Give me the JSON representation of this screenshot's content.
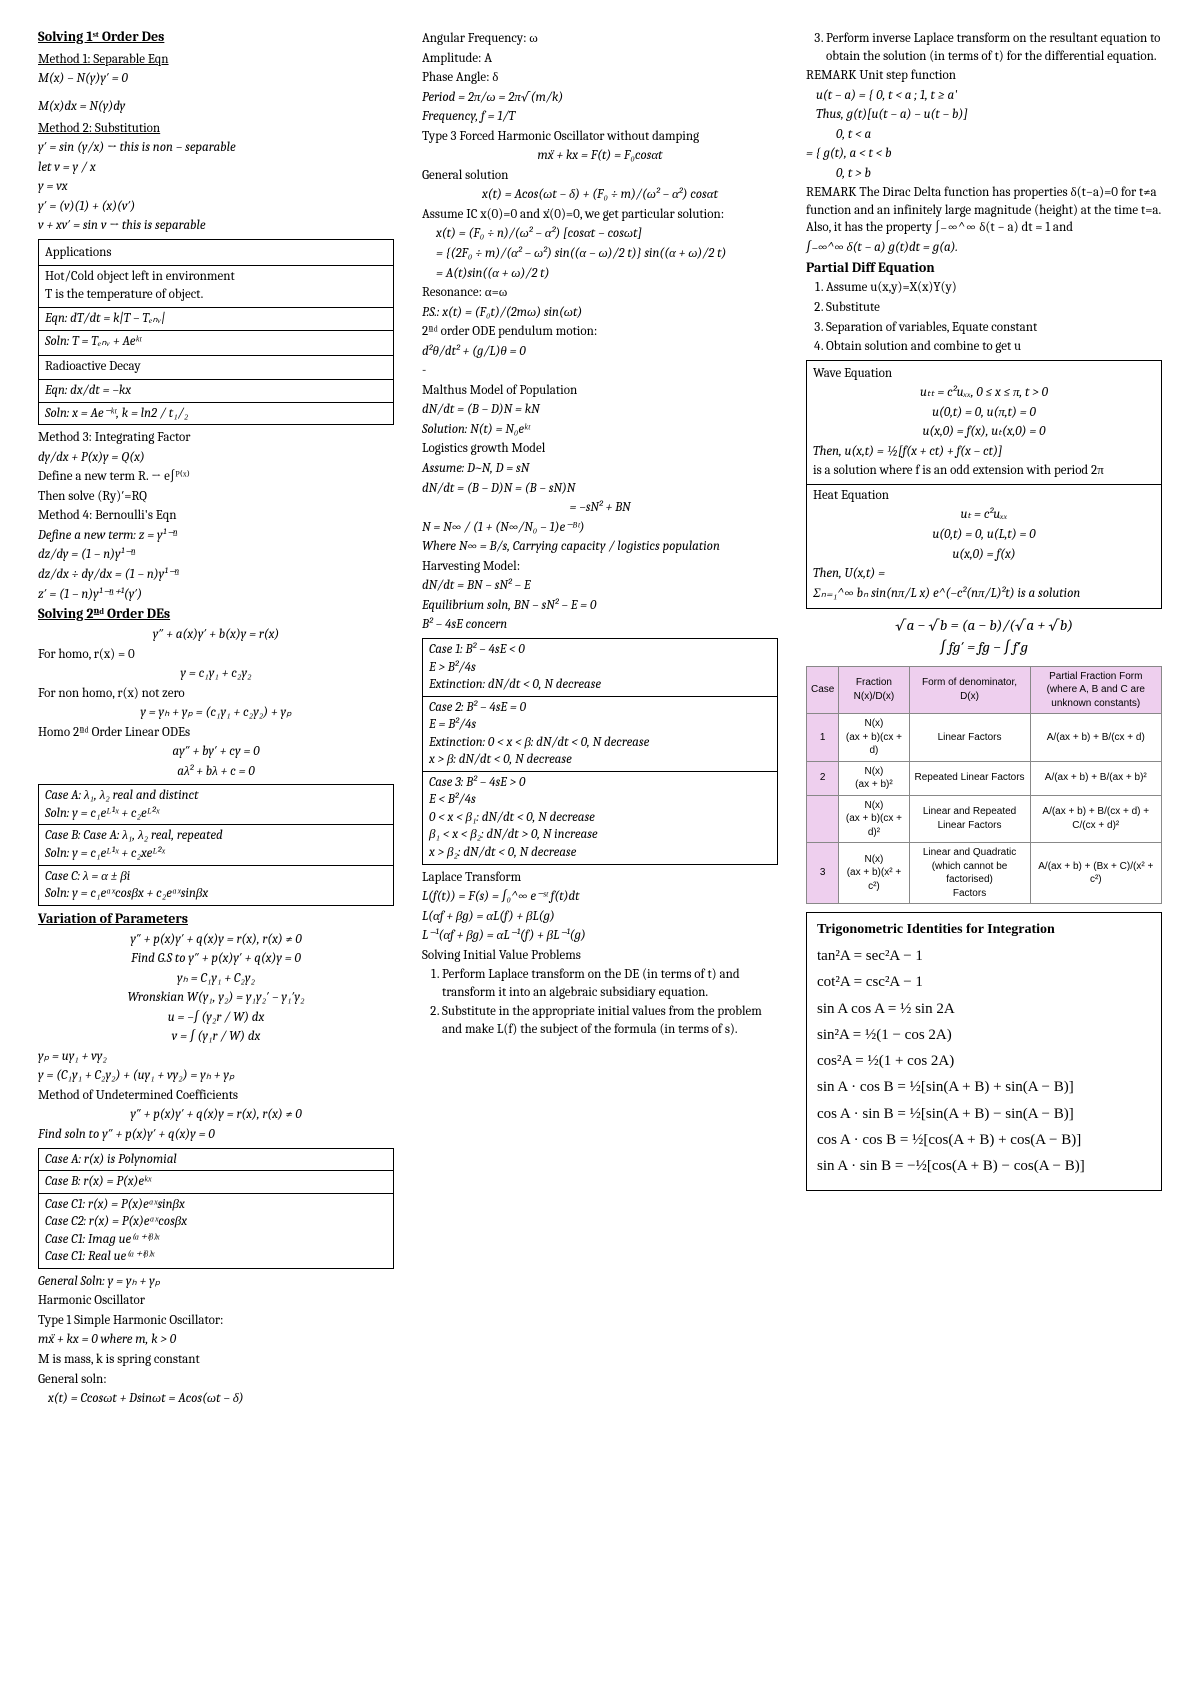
{
  "c1": {
    "title": "Solving 1ˢᵗ Order Des",
    "m1_h": "Method 1: Separable Eqn",
    "m1_1": "M(x) − N(y)y′ = 0",
    "m1_2": "M(x)dx = N(y)dy",
    "m2_h": "Method 2: Substitution",
    "m2_1": "y′ = sin (y/x) → this is non − separable",
    "m2_2": "let v = y / x",
    "m2_3": "y = vx",
    "m2_4": "y′ = (v)(1) + (x)(v′)",
    "m2_5": "v + xv′ = sin v → this is separable",
    "app_h": "Applications",
    "app_1": "Hot/Cold object left in environment",
    "app_2": "T is the temperature of object.",
    "app_3": "Eqn: dT/dt = k|T − Tₑₙᵥ|",
    "app_4": "Soln: T = Tₑₙᵥ + Aeᵏᵗ",
    "app_5": "Radioactive Decay",
    "app_6": "Eqn: dx/dt = −kx",
    "app_7": "Soln: x = Ae⁻ᵏᵗ, k = ln2 / t₁/₂",
    "m3_h": "Method 3: Integrating Factor",
    "m3_1": "dy/dx + P(x)y = Q(x)",
    "m3_2": "Define a new term R. → e∫ᴾ⁽ˣ⁾",
    "m3_3": "Then solve (Ry)′=RQ",
    "m4_h": "Method 4: Bernoulli's Eqn",
    "m4_1": "Define a new term: z = y¹⁻ⁿ",
    "m4_2": "dz/dy = (1 − n)y¹⁻ⁿ",
    "m4_3": "dz/dx ÷ dy/dx = (1 − n)y¹⁻ⁿ",
    "m4_4": "z′ = (1 − n)y¹⁻ⁿ⁺¹(y′)",
    "sec2_h": "Solving 2ⁿᵈ Order DEs",
    "s2_1": "y″ + a(x)y′ + b(x)y = r(x)",
    "s2_2": "For homo, r(x) = 0",
    "s2_3": "y = c₁y₁ + c₂y₂",
    "s2_4": "For non homo, r(x) not zero",
    "s2_5": "y = yₕ + yₚ = (c₁y₁ + c₂y₂) + yₚ",
    "s2_6": "Homo 2ⁿᵈ Order Linear ODEs",
    "s2_7": "ay″ + by′ + cy = 0",
    "s2_8": "aλ² + bλ + c = 0",
    "caseA1": "Case A: λ₁, λ₂ real and distinct",
    "caseA2": "Soln: y = c₁eᴸ¹ˣ + c₂eᴸ²ˣ",
    "caseB1": "Case B: Case A: λ₁, λ₂ real, repeated",
    "caseB2": "Soln: y = c₁eᴸ¹ˣ + c₂xeᴸ²ˣ",
    "caseC1": "Case C: λ = α ± βi",
    "caseC2": "Soln: y = c₁eᵅˣcosβx + c₂eᵅˣsinβx",
    "vop_h": "Variation of Parameters",
    "vop_1": "y″ + p(x)y′ + q(x)y = r(x), r(x) ≠ 0",
    "vop_2": "Find G.S to y″ + p(x)y′ + q(x)y = 0",
    "vop_3": "yₕ = C₁y₁ + C₂y₂",
    "vop_4": "Wronskian W(y₁, y₂) = y₁y₂′ − y₁′y₂",
    "vop_5": "u = −∫ (y₂r / W) dx",
    "vop_6": "v = ∫ (y₁r / W) dx",
    "vop_7": "yₚ = uy₁ + vy₂",
    "vop_8": "y = (C₁y₁ + C₂y₂) + (uy₁ + vy₂) = yₕ + yₚ",
    "muc_h": "Method of Undetermined Coefficients",
    "muc_1": "y″ + p(x)y′ + q(x)y = r(x), r(x) ≠ 0",
    "muc_2": "Find soln to y″ + p(x)y′ + q(x)y = 0",
    "uc_a": "Case A: r(x) is Polynomial",
    "uc_b": "Case B: r(x) = P(x)eᵏˣ",
    "uc_c1": "Case C1: r(x) = P(x)eᵅˣsinβx",
    "uc_c2": "Case C2: r(x) = P(x)eᵅˣcosβx",
    "uc_c3": "Case C1: Imag ue⁽ᵅ⁺ⁱᵝ⁾ˣ",
    "uc_c4": "Case C1: Real ue⁽ᵅ⁺ⁱᵝ⁾ˣ",
    "gs": "General Soln: y = yₕ + yₚ",
    "ho_h": "Harmonic Oscillator",
    "ho_1": "Type 1 Simple Harmonic Oscillator:",
    "ho_2": "mẍ + kx = 0 where m, k > 0",
    "ho_3": "M is mass, k is spring constant",
    "ho_4": "General soln:",
    "ho_5": "x(t) = Ccosωt + Dsinωt = Acos(ωt − δ)"
  },
  "c2": {
    "l1": "Angular Frequency: ω",
    "l2": "Amplitude: A",
    "l3": "Phase Angle: δ",
    "l4": "Period = 2π/ω = 2π√(m/k)",
    "l5": "Frequency, f = 1/T",
    "l6": "Type 3 Forced Harmonic Oscillator without damping",
    "l7": "mẍ + kx = F(t) = F₀cosαt",
    "l8": "General solution",
    "l9": "x(t) = Acos(ωt − δ) + (F₀ ÷ m)/(ω² − α²) cosαt",
    "l10": "Assume IC x(0)=0 and ẋ(0)=0, we get particular solution:",
    "l11": "x(t) = (F₀ ÷ n)/(ω² − α²) [cosαt − cosωt]",
    "l12": "= {(2F₀ ÷ m)/(α² − ω²) sin((α − ω)/2 t)} sin((α + ω)/2 t)",
    "l13": "= A(t)sin((α + ω)/2 t)",
    "l14": "Resonance: α=ω",
    "l15": "P.S.: x(t) = (F₀t)/(2mω) sin(ωt)",
    "l16": "2ⁿᵈ order ODE pendulum motion:",
    "l17": "d²θ/dt² + (g/L)θ = 0",
    "l18": "-",
    "mm_h": "Malthus Model of Population",
    "mm_1": "dN/dt = (B − D)N = kN",
    "mm_2": "Solution: N(t) = N₀eᵏᵗ",
    "lg_h": "Logistics growth Model",
    "lg_1": "Assume: D~N, D = sN",
    "lg_2": "dN/dt = (B − D)N = (B − sN)N",
    "lg_3": "= −sN² + BN",
    "lg_4": "N = N∞ / (1 + (N∞/N₀ − 1)e⁻ᴮᵗ)",
    "lg_5": "Where N∞ = B/s, Carrying capacity / logistics population",
    "hv_h": "Harvesting Model:",
    "hv_1": "dN/dt = BN − sN² − E",
    "hv_2": "Equilibrium soln, BN − sN² − E = 0",
    "hv_3": "B² − 4sE concern",
    "c1_1": "Case 1: B² − 4sE < 0",
    "c1_2": "E > B²/4s",
    "c1_3": "Extinction: dN/dt < 0, N decrease",
    "c2_1": "Case 2: B² − 4sE = 0",
    "c2_2": "E = B²/4s",
    "c2_3": "Extinction: 0 < x < β: dN/dt < 0, N decrease",
    "c2_4": "x > β: dN/dt < 0, N decrease",
    "c3_1": "Case 3: B² − 4sE > 0",
    "c3_2": "E < B²/4s",
    "c3_3": "0 < x < β₁: dN/dt < 0, N decrease",
    "c3_4": "β₁ < x < β₂: dN/dt > 0, N increase",
    "c3_5": "x > β₂: dN/dt < 0, N decrease",
    "lt_h": "Laplace Transform",
    "lt_1": "L(f(t)) = F(s) = ∫₀^∞ e⁻ˢᵗ f(t)dt",
    "lt_2": "L(αf + βg) = αL(f) + βL(g)",
    "lt_3": "L⁻¹(αf + βg) = αL⁻¹(f) + βL⁻¹(g)",
    "siv_h": "Solving Initial Value Problems",
    "siv_1": "Perform Laplace transform on the DE (in terms of t) and transform it into an algebraic subsidiary equation.",
    "siv_2": "Substitute in the appropriate initial values from the problem and make L(f) the subject of the formula (in terms of s)."
  },
  "c3": {
    "siv_3": "Perform inverse Laplace transform on the resultant equation to obtain the solution (in terms of t) for the differential equation.",
    "rm1": "REMARK Unit step function",
    "rm1_1": "u(t − a) = { 0, t < a ; 1, t ≥ a'",
    "rm1_2": "Thus, g(t)[u(t − a) − u(t − b)]",
    "rm1_3": "0, t < a",
    "rm1_4": "= { g(t), a < t < b",
    "rm1_5": "0, t > b",
    "rm2": "REMARK The Dirac Delta function has properties δ(t−a)=0 for t≠a function and an infinitely large magnitude (height) at the time t=a. Also, it has the property ∫₋∞^∞ δ(t − a) dt = 1 and",
    "rm2_1": "∫₋∞^∞ δ(t − a) g(t)dt = g(a).",
    "pde_h": "Partial Diff Equation",
    "pde_1": "Assume u(x,y)=X(x)Y(y)",
    "pde_2": "Substitute",
    "pde_3": "Separation of variables, Equate constant",
    "pde_4": "Obtain solution and combine to get u",
    "we_h": "Wave Equation",
    "we_1": "uₜₜ = c²uₓₓ, 0 ≤ x ≤ π, t > 0",
    "we_2": "u(0,t) = 0, u(π,t) = 0",
    "we_3": "u(x,0) = f(x), uₜ(x,0) = 0",
    "we_4": "Then, u(x,t) = ½[f(x + ct) + f(x − ct)]",
    "we_5": "is a solution where f is an odd extension with period 2π",
    "he_h": "Heat Equation",
    "he_1": "uₜ = c²uₓₓ",
    "he_2": "u(0,t) = 0, u(L,t) = 0",
    "he_3": "u(x,0) = f(x)",
    "he_4": "Then, U(x,t) =",
    "he_5": "Σₙ₌₁^∞ bₙ sin(nπ/L x) e^(−c²(nπ/L)²t)  is a solution",
    "id1": "√a − √b = (a − b)/(√a + √b)",
    "id2": "∫ fg′ = fg − ∫ f′g",
    "frac": {
      "headers": [
        "Case",
        "Fraction N(x)/D(x)",
        "Form of denominator, D(x)",
        "Partial Fraction Form\n(where A, B and C are unknown constants)"
      ],
      "rows": [
        [
          "1",
          "N(x)\n(ax + b)(cx + d)",
          "Linear Factors",
          "A/(ax + b) + B/(cx + d)"
        ],
        [
          "2",
          "N(x)\n(ax + b)²",
          "Repeated Linear Factors",
          "A/(ax + b) + B/(ax + b)²"
        ],
        [
          "",
          "N(x)\n(ax + b)(cx + d)²",
          "Linear and Repeated Linear Factors",
          "A/(ax + b) + B/(cx + d) + C/(cx + d)²"
        ],
        [
          "3",
          "N(x)\n(ax + b)(x² + c²)",
          "Linear and Quadratic\n(which cannot be factorised)\nFactors",
          "A/(ax + b) + (Bx + C)/(x² + c²)"
        ]
      ]
    },
    "trig_h": "Trigonometric Identities for Integration",
    "t1": "tan²A = sec²A − 1",
    "t2": "cot²A = csc²A − 1",
    "t3": "sin A cos A = ½ sin 2A",
    "t4": "sin²A = ½(1 − cos 2A)",
    "t5": "cos²A = ½(1 + cos 2A)",
    "t6": "sin A · cos B = ½[sin(A + B) + sin(A − B)]",
    "t7": "cos A · sin B = ½[sin(A + B) − sin(A − B)]",
    "t8": "cos A · cos B = ½[cos(A + B) + cos(A − B)]",
    "t9": "sin A · sin B = −½[cos(A + B) − cos(A − B)]"
  }
}
